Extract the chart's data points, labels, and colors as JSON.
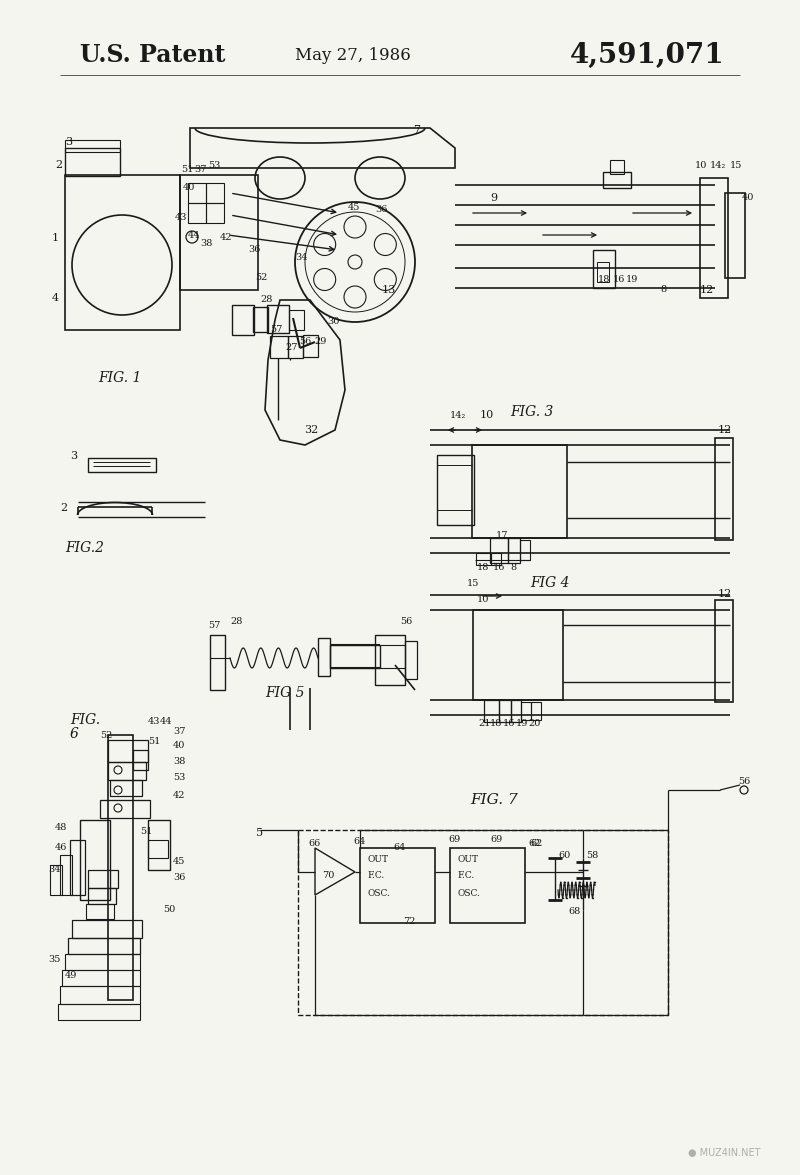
{
  "title": "U.S. Patent",
  "date": "May 27, 1986",
  "patent_number": "4,591,071",
  "background": "#f5f5f0",
  "watermark": "● MUZ4IN.NET",
  "line_color": "#1a1a1a",
  "text_color": "#1a1a1a"
}
